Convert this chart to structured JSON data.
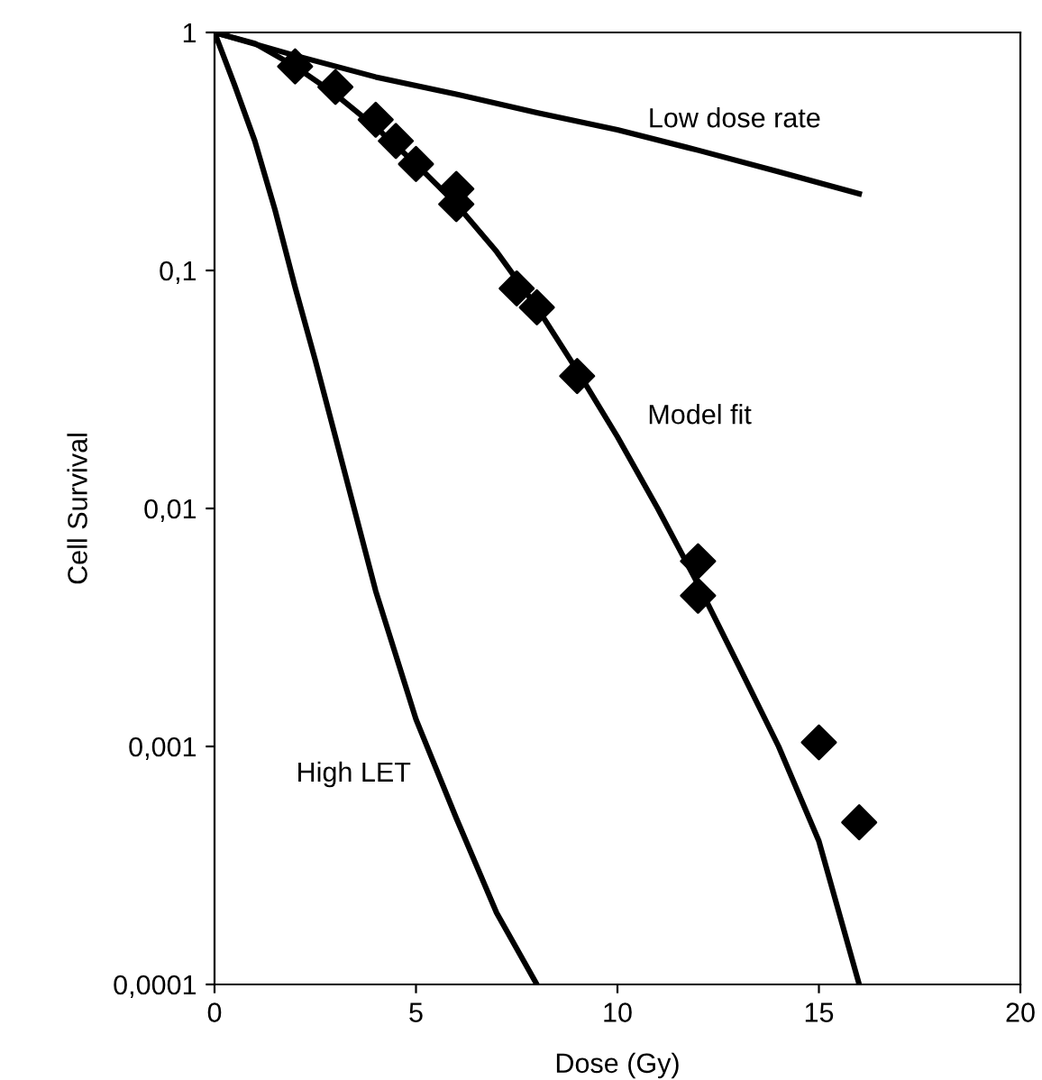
{
  "chart_data": {
    "type": "line",
    "xlabel": "Dose (Gy)",
    "ylabel": "Cell Survival",
    "log": "y",
    "xlim": [
      0,
      20
    ],
    "xticks": [
      0,
      5,
      10,
      15,
      20
    ],
    "ylim": [
      0.0001,
      1
    ],
    "yticks": [
      {
        "value": 0.0001,
        "label": "0,0001"
      },
      {
        "value": 0.001,
        "label": "0,001"
      },
      {
        "value": 0.01,
        "label": "0,01"
      },
      {
        "value": 0.1,
        "label": "0,1"
      },
      1
    ],
    "grid": false,
    "legend": false,
    "series": [
      {
        "name": "Low dose rate",
        "color": "#000000",
        "marker": "none",
        "x": [
          0,
          2,
          4,
          6,
          8,
          10,
          12,
          14,
          16
        ],
        "values": [
          1,
          0.8,
          0.65,
          0.55,
          0.46,
          0.39,
          0.32,
          0.26,
          0.21
        ]
      },
      {
        "name": "Model fit",
        "color": "#000000",
        "marker": "none",
        "x": [
          0,
          1,
          2,
          3,
          4,
          5,
          6,
          7,
          8,
          9,
          10,
          11,
          12,
          13,
          14,
          15,
          16
        ],
        "values": [
          1,
          0.9,
          0.72,
          0.55,
          0.4,
          0.28,
          0.19,
          0.12,
          0.07,
          0.038,
          0.02,
          0.01,
          0.0048,
          0.0022,
          0.001,
          0.0004,
          0.0001
        ]
      },
      {
        "name": "High LET",
        "color": "#000000",
        "marker": "none",
        "x": [
          0,
          0.5,
          1,
          1.5,
          2,
          2.5,
          3,
          4,
          5,
          6,
          7,
          8
        ],
        "values": [
          1,
          0.6,
          0.35,
          0.18,
          0.085,
          0.042,
          0.02,
          0.0045,
          0.0013,
          0.0005,
          0.0002,
          0.0001
        ]
      },
      {
        "type": "scatter",
        "color": "#000000",
        "marker": "diamond",
        "x": [
          2,
          3,
          4,
          4.5,
          5,
          6,
          6,
          7.5,
          8,
          9,
          12,
          12,
          15,
          16
        ],
        "values": [
          0.72,
          0.59,
          0.43,
          0.35,
          0.28,
          0.22,
          0.19,
          0.084,
          0.07,
          0.036,
          0.006,
          0.0043,
          0.00104,
          0.00048
        ]
      }
    ]
  }
}
